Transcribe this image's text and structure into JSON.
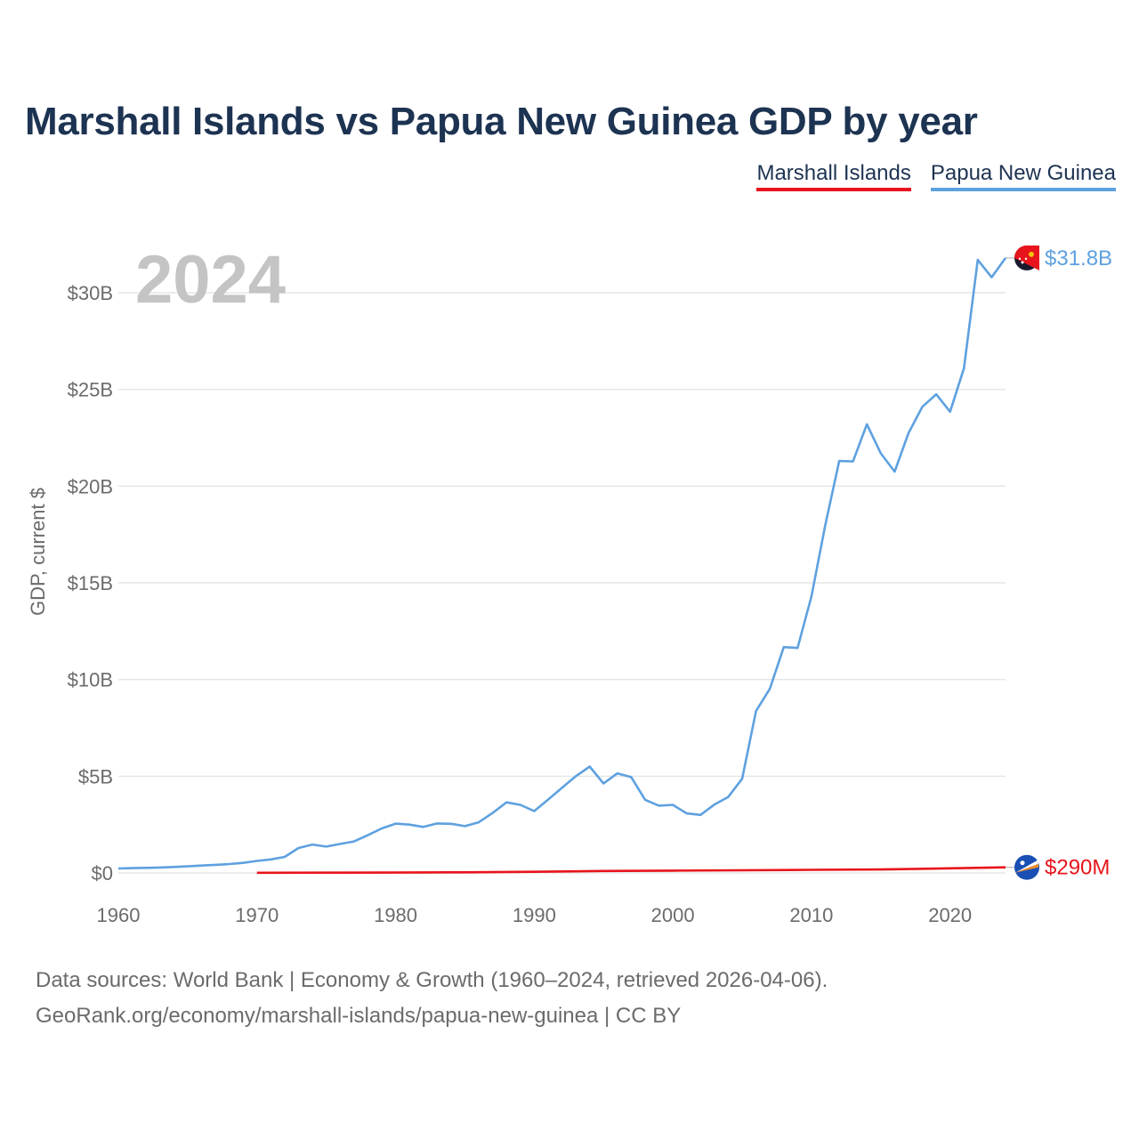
{
  "title": "Marshall Islands vs Papua New Guinea GDP by year",
  "legend": [
    {
      "name": "Marshall Islands",
      "color": "#e8141c"
    },
    {
      "name": "Papua New Guinea",
      "color": "#5ea1e0"
    }
  ],
  "footer": {
    "line1": "Data sources: World Bank | Economy & Growth (1960–2024, retrieved 2026-04-06).",
    "line2": "GeoRank.org/economy/marshall-islands/papua-new-guinea | CC BY"
  },
  "chart_data": {
    "type": "line",
    "title": "Marshall Islands vs Papua New Guinea GDP by year",
    "xlabel": "",
    "ylabel": "GDP, current $",
    "year_label": "2024",
    "xlim": [
      1960,
      2024
    ],
    "ylim": [
      0,
      33
    ],
    "x_ticks": [
      1960,
      1970,
      1980,
      1990,
      2000,
      2010,
      2020
    ],
    "y_ticks": [
      {
        "value": 0,
        "label": "$0"
      },
      {
        "value": 5,
        "label": "$5B"
      },
      {
        "value": 10,
        "label": "$10B"
      },
      {
        "value": 15,
        "label": "$15B"
      },
      {
        "value": 20,
        "label": "$20B"
      },
      {
        "value": 25,
        "label": "$25B"
      },
      {
        "value": 30,
        "label": "$30B"
      }
    ],
    "grid": true,
    "legend_position": "top-right",
    "units": "billions of current US$",
    "series": [
      {
        "name": "Papua New Guinea",
        "color": "#5ea1e0",
        "end_label": "$31.8B",
        "x": [
          1960,
          1961,
          1962,
          1963,
          1964,
          1965,
          1966,
          1967,
          1968,
          1969,
          1970,
          1971,
          1972,
          1973,
          1974,
          1975,
          1976,
          1977,
          1978,
          1979,
          1980,
          1981,
          1982,
          1983,
          1984,
          1985,
          1986,
          1987,
          1988,
          1989,
          1990,
          1991,
          1992,
          1993,
          1994,
          1995,
          1996,
          1997,
          1998,
          1999,
          2000,
          2001,
          2002,
          2003,
          2004,
          2005,
          2006,
          2007,
          2008,
          2009,
          2010,
          2011,
          2012,
          2013,
          2014,
          2015,
          2016,
          2017,
          2018,
          2019,
          2020,
          2021,
          2022,
          2023,
          2024
        ],
        "values": [
          0.23,
          0.25,
          0.26,
          0.28,
          0.31,
          0.34,
          0.38,
          0.42,
          0.46,
          0.52,
          0.62,
          0.7,
          0.83,
          1.29,
          1.47,
          1.36,
          1.5,
          1.63,
          1.95,
          2.3,
          2.55,
          2.5,
          2.38,
          2.56,
          2.54,
          2.42,
          2.62,
          3.1,
          3.65,
          3.52,
          3.2,
          3.79,
          4.4,
          5.0,
          5.5,
          4.63,
          5.15,
          4.95,
          3.78,
          3.48,
          3.52,
          3.08,
          3.0,
          3.54,
          3.93,
          4.87,
          8.37,
          9.53,
          11.68,
          11.63,
          14.3,
          18.0,
          21.3,
          21.28,
          23.2,
          21.7,
          20.75,
          22.75,
          24.1,
          24.75,
          23.85,
          26.1,
          31.7,
          30.8,
          31.8
        ]
      },
      {
        "name": "Marshall Islands",
        "color": "#e8141c",
        "end_label": "$290M",
        "x": [
          1970,
          1975,
          1980,
          1985,
          1990,
          1995,
          2000,
          2005,
          2010,
          2015,
          2020,
          2024
        ],
        "values": [
          0.01,
          0.015,
          0.02,
          0.03,
          0.06,
          0.1,
          0.12,
          0.14,
          0.16,
          0.18,
          0.24,
          0.29
        ]
      }
    ]
  }
}
